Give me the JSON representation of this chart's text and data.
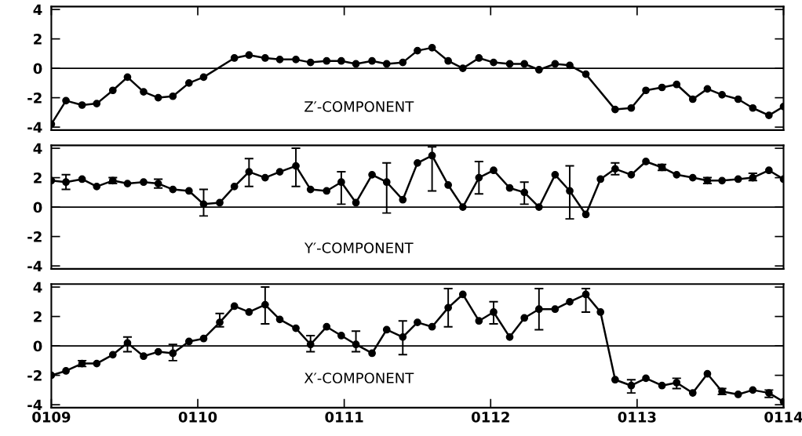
{
  "chart_data": [
    {
      "type": "line",
      "marker": "circle",
      "line_style": "solid",
      "tick_labels": "y",
      "grid": false,
      "x": [
        109.0,
        109.1,
        109.21,
        109.31,
        109.42,
        109.52,
        109.63,
        109.73,
        109.83,
        109.94,
        110.04,
        110.15,
        110.25,
        110.35,
        110.46,
        110.56,
        110.67,
        110.77,
        110.88,
        110.98,
        111.08,
        111.19,
        111.29,
        111.4,
        111.5,
        111.6,
        111.71,
        111.81,
        111.92,
        112.02,
        112.13,
        112.23,
        112.33,
        112.44,
        112.54,
        112.65,
        112.75,
        112.85,
        112.96,
        113.06,
        113.17,
        113.27,
        113.38,
        113.48,
        113.58,
        113.69,
        113.79,
        113.9,
        114.0
      ],
      "series": [
        {
          "color": "#000000",
          "values": [
            -3.8,
            -2.2,
            -2.5,
            -2.4,
            -1.5,
            -0.6,
            -1.6,
            -2.0,
            -1.9,
            -1.0,
            -0.6,
            null,
            0.7,
            0.9,
            0.7,
            0.6,
            0.6,
            0.4,
            0.5,
            0.5,
            0.3,
            0.5,
            0.3,
            0.4,
            1.2,
            1.4,
            0.5,
            0.0,
            0.7,
            0.4,
            0.3,
            0.3,
            -0.1,
            0.3,
            0.2,
            -0.4,
            null,
            -2.8,
            -2.7,
            -1.5,
            -1.3,
            -1.1,
            -2.1,
            -1.4,
            -1.8,
            -2.1,
            -2.7,
            -3.2,
            -2.6
          ]
        }
      ],
      "xlim": [
        109,
        114
      ],
      "xticks": [
        109,
        110,
        111,
        112,
        113,
        114
      ],
      "ylim": [
        -4.2,
        4.2
      ],
      "yticks": [
        -4,
        -2,
        0,
        2,
        4
      ],
      "ref_lines": [
        {
          "axis": "y",
          "value": 0,
          "color": "#000000"
        }
      ],
      "annotations": [
        "Z′-COMPONENT"
      ]
    },
    {
      "type": "line",
      "marker": "circle",
      "line_style": "solid",
      "tick_labels": "y",
      "grid": false,
      "x": [
        109.0,
        109.1,
        109.21,
        109.31,
        109.42,
        109.52,
        109.63,
        109.73,
        109.83,
        109.94,
        110.04,
        110.15,
        110.25,
        110.35,
        110.46,
        110.56,
        110.67,
        110.77,
        110.88,
        110.98,
        111.08,
        111.19,
        111.29,
        111.4,
        111.5,
        111.6,
        111.71,
        111.81,
        111.92,
        112.02,
        112.13,
        112.23,
        112.33,
        112.44,
        112.54,
        112.65,
        112.75,
        112.85,
        112.96,
        113.06,
        113.17,
        113.27,
        113.38,
        113.48,
        113.58,
        113.69,
        113.79,
        113.9,
        114.0
      ],
      "series": [
        {
          "color": "#000000",
          "values": [
            1.8,
            1.7,
            1.9,
            1.4,
            1.8,
            1.6,
            1.7,
            1.6,
            1.2,
            1.1,
            0.2,
            0.3,
            1.4,
            2.4,
            2.0,
            2.4,
            2.8,
            1.2,
            1.1,
            1.7,
            0.3,
            2.2,
            1.7,
            0.5,
            3.0,
            3.5,
            1.5,
            0.0,
            2.0,
            2.5,
            1.3,
            1.0,
            0.0,
            2.2,
            1.1,
            -0.5,
            1.9,
            2.6,
            2.2,
            3.1,
            2.7,
            2.2,
            2.0,
            1.8,
            1.8,
            1.9,
            2.0,
            2.5,
            1.9
          ],
          "errors": [
            null,
            [
              1.2,
              2.2
            ],
            null,
            null,
            [
              1.6,
              2.0
            ],
            null,
            null,
            [
              1.3,
              1.9
            ],
            null,
            null,
            [
              -0.6,
              1.2
            ],
            null,
            null,
            [
              1.4,
              3.3
            ],
            null,
            null,
            [
              1.4,
              4.0
            ],
            null,
            null,
            [
              0.2,
              2.4
            ],
            null,
            null,
            [
              -0.4,
              3.0
            ],
            null,
            null,
            [
              1.1,
              4.1
            ],
            null,
            null,
            [
              0.9,
              3.1
            ],
            null,
            null,
            [
              0.2,
              1.7
            ],
            null,
            null,
            [
              -0.8,
              2.8
            ],
            null,
            null,
            [
              2.2,
              3.0
            ],
            null,
            null,
            [
              2.5,
              2.9
            ],
            null,
            null,
            [
              1.6,
              2.0
            ],
            null,
            null,
            [
              1.8,
              2.3
            ],
            null,
            null
          ]
        }
      ],
      "xlim": [
        109,
        114
      ],
      "xticks": [
        109,
        110,
        111,
        112,
        113,
        114
      ],
      "ylim": [
        -4.2,
        4.2
      ],
      "yticks": [
        -4,
        -2,
        0,
        2,
        4
      ],
      "ref_lines": [
        {
          "axis": "y",
          "value": 0,
          "color": "#000000"
        }
      ],
      "annotations": [
        "Y′-COMPONENT"
      ]
    },
    {
      "type": "line",
      "marker": "circle",
      "line_style": "solid",
      "grid": false,
      "x": [
        109.0,
        109.1,
        109.21,
        109.31,
        109.42,
        109.52,
        109.63,
        109.73,
        109.83,
        109.94,
        110.04,
        110.15,
        110.25,
        110.35,
        110.46,
        110.56,
        110.67,
        110.77,
        110.88,
        110.98,
        111.08,
        111.19,
        111.29,
        111.4,
        111.5,
        111.6,
        111.71,
        111.81,
        111.92,
        112.02,
        112.13,
        112.23,
        112.33,
        112.44,
        112.54,
        112.65,
        112.75,
        112.85,
        112.96,
        113.06,
        113.17,
        113.27,
        113.38,
        113.48,
        113.58,
        113.69,
        113.79,
        113.9,
        114.0
      ],
      "series": [
        {
          "color": "#000000",
          "values": [
            -2.0,
            -1.7,
            -1.2,
            -1.2,
            -0.6,
            0.2,
            -0.7,
            -0.4,
            -0.5,
            0.3,
            0.5,
            1.6,
            2.7,
            2.3,
            2.8,
            1.8,
            1.2,
            0.1,
            1.3,
            0.7,
            0.1,
            -0.5,
            1.1,
            0.6,
            1.6,
            1.3,
            2.6,
            3.5,
            1.7,
            2.3,
            0.6,
            1.9,
            2.5,
            2.5,
            3.0,
            3.5,
            2.3,
            -2.3,
            -2.7,
            -2.2,
            -2.7,
            -2.5,
            -3.2,
            -1.9,
            -3.1,
            -3.3,
            -3.0,
            -3.2,
            -3.8
          ],
          "errors": [
            null,
            null,
            [
              -1.4,
              -1.0
            ],
            null,
            null,
            [
              -0.4,
              0.6
            ],
            null,
            null,
            [
              -1.0,
              0.1
            ],
            null,
            null,
            [
              1.3,
              2.2
            ],
            null,
            null,
            [
              1.5,
              4.0
            ],
            null,
            null,
            [
              -0.4,
              0.7
            ],
            null,
            null,
            [
              -0.4,
              1.0
            ],
            null,
            null,
            [
              -0.6,
              1.7
            ],
            null,
            null,
            [
              1.3,
              3.9
            ],
            null,
            null,
            [
              1.5,
              3.0
            ],
            null,
            null,
            [
              1.1,
              3.9
            ],
            null,
            null,
            [
              2.3,
              3.9
            ],
            null,
            null,
            [
              -3.2,
              -2.3
            ],
            null,
            null,
            [
              -2.9,
              -2.2
            ],
            null,
            null,
            [
              -3.3,
              -2.9
            ],
            null,
            null,
            [
              -3.5,
              -3.0
            ],
            null
          ]
        }
      ],
      "xlim": [
        109,
        114
      ],
      "xticks": [
        {
          "value": 109,
          "label": "0109"
        },
        {
          "value": 110,
          "label": "0110"
        },
        {
          "value": 111,
          "label": "0111"
        },
        {
          "value": 112,
          "label": "0112"
        },
        {
          "value": 113,
          "label": "0113"
        },
        {
          "value": 114,
          "label": "0114"
        }
      ],
      "ylim": [
        -4.2,
        4.2
      ],
      "yticks": [
        -4,
        -2,
        0,
        2,
        4
      ],
      "ref_lines": [
        {
          "axis": "y",
          "value": 0,
          "color": "#000000"
        }
      ],
      "annotations": [
        "X′-COMPONENT"
      ]
    }
  ]
}
